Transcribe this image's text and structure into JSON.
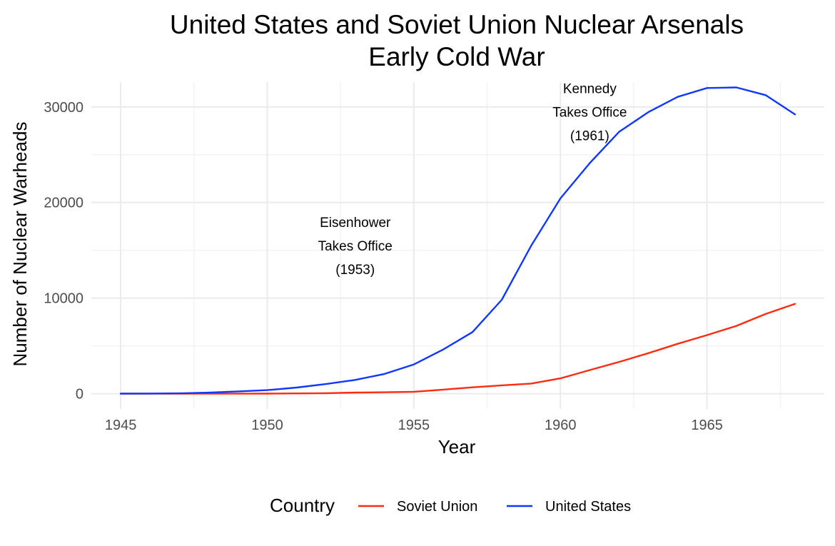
{
  "chart_data": {
    "type": "line",
    "title_lines": [
      "United States and Soviet Union Nuclear Arsenals",
      "Early Cold War"
    ],
    "xlabel": "Year",
    "ylabel": "Number of Nuclear Warheads",
    "xlim": [
      1944,
      1969
    ],
    "ylim": [
      -1600,
      32600
    ],
    "x_ticks": [
      1945,
      1950,
      1955,
      1960,
      1965
    ],
    "x_minor_ticks": [
      1947.5,
      1952.5,
      1957.5,
      1962.5,
      1967.5
    ],
    "y_ticks": [
      0,
      10000,
      20000,
      30000
    ],
    "y_minor_ticks": [
      5000,
      15000,
      25000
    ],
    "grid": true,
    "legend": {
      "title": "Country",
      "position": "bottom",
      "entries": [
        {
          "name": "Soviet Union",
          "color": "#ff2a0f"
        },
        {
          "name": "United States",
          "color": "#0f37ff"
        }
      ]
    },
    "annotations": [
      {
        "lines": [
          "Eisenhower",
          "Takes Office",
          "(1953)"
        ],
        "x": 1953,
        "y": 15500
      },
      {
        "lines": [
          "Kennedy",
          "Takes Office",
          "(1961)"
        ],
        "x": 1961,
        "y": 29500
      }
    ],
    "x": [
      1945,
      1946,
      1947,
      1948,
      1949,
      1950,
      1951,
      1952,
      1953,
      1954,
      1955,
      1956,
      1957,
      1958,
      1959,
      1960,
      1961,
      1962,
      1963,
      1964,
      1965,
      1966,
      1967,
      1968
    ],
    "series": [
      {
        "name": "Soviet Union",
        "color": "#ff2a0f",
        "values": [
          0,
          0,
          0,
          0,
          1,
          5,
          25,
          50,
          120,
          150,
          200,
          426,
          660,
          869,
          1060,
          1605,
          2471,
          3322,
          4238,
          5221,
          6129,
          7089,
          8339,
          9399
        ]
      },
      {
        "name": "United States",
        "color": "#0f37ff",
        "values": [
          6,
          11,
          32,
          110,
          235,
          369,
          640,
          1005,
          1436,
          2063,
          3057,
          4618,
          6444,
          9822,
          15468,
          20434,
          24126,
          27387,
          29459,
          31056,
          31982,
          32040,
          31233,
          29224
        ]
      }
    ]
  }
}
